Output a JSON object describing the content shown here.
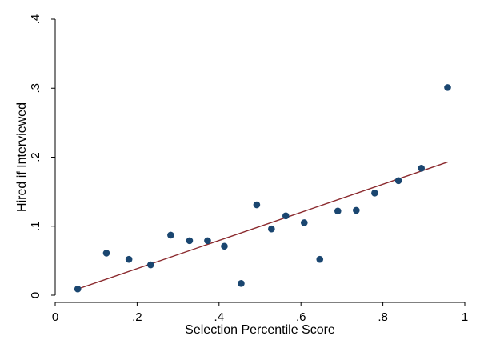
{
  "chart_data": {
    "type": "scatter",
    "xlabel": "Selection Percentile Score",
    "ylabel": "Hired if Interviewed",
    "xlim": [
      0,
      1
    ],
    "ylim": [
      0,
      0.4
    ],
    "x_ticks": [
      0,
      0.2,
      0.4,
      0.6,
      0.8,
      1
    ],
    "x_tick_labels": [
      "0",
      ".2",
      ".4",
      ".6",
      ".8",
      "1"
    ],
    "y_ticks": [
      0,
      0.1,
      0.2,
      0.3,
      0.4
    ],
    "y_tick_labels": [
      "0",
      ".1",
      ".2",
      ".3",
      ".4"
    ],
    "grid": false,
    "points": [
      {
        "x": 0.055,
        "y": 0.009
      },
      {
        "x": 0.125,
        "y": 0.061
      },
      {
        "x": 0.18,
        "y": 0.052
      },
      {
        "x": 0.233,
        "y": 0.044
      },
      {
        "x": 0.282,
        "y": 0.087
      },
      {
        "x": 0.328,
        "y": 0.079
      },
      {
        "x": 0.372,
        "y": 0.079
      },
      {
        "x": 0.413,
        "y": 0.071
      },
      {
        "x": 0.454,
        "y": 0.017
      },
      {
        "x": 0.492,
        "y": 0.131
      },
      {
        "x": 0.528,
        "y": 0.096
      },
      {
        "x": 0.563,
        "y": 0.115
      },
      {
        "x": 0.608,
        "y": 0.105
      },
      {
        "x": 0.646,
        "y": 0.052
      },
      {
        "x": 0.69,
        "y": 0.122
      },
      {
        "x": 0.735,
        "y": 0.123
      },
      {
        "x": 0.78,
        "y": 0.148
      },
      {
        "x": 0.838,
        "y": 0.166
      },
      {
        "x": 0.894,
        "y": 0.184
      },
      {
        "x": 0.958,
        "y": 0.301
      }
    ],
    "fit_line": {
      "x": [
        0.055,
        0.958
      ],
      "y": [
        0.009,
        0.193
      ]
    },
    "colors": {
      "points": "#1a4670",
      "fit_line": "#8b2a2e",
      "axis": "#000000"
    }
  }
}
